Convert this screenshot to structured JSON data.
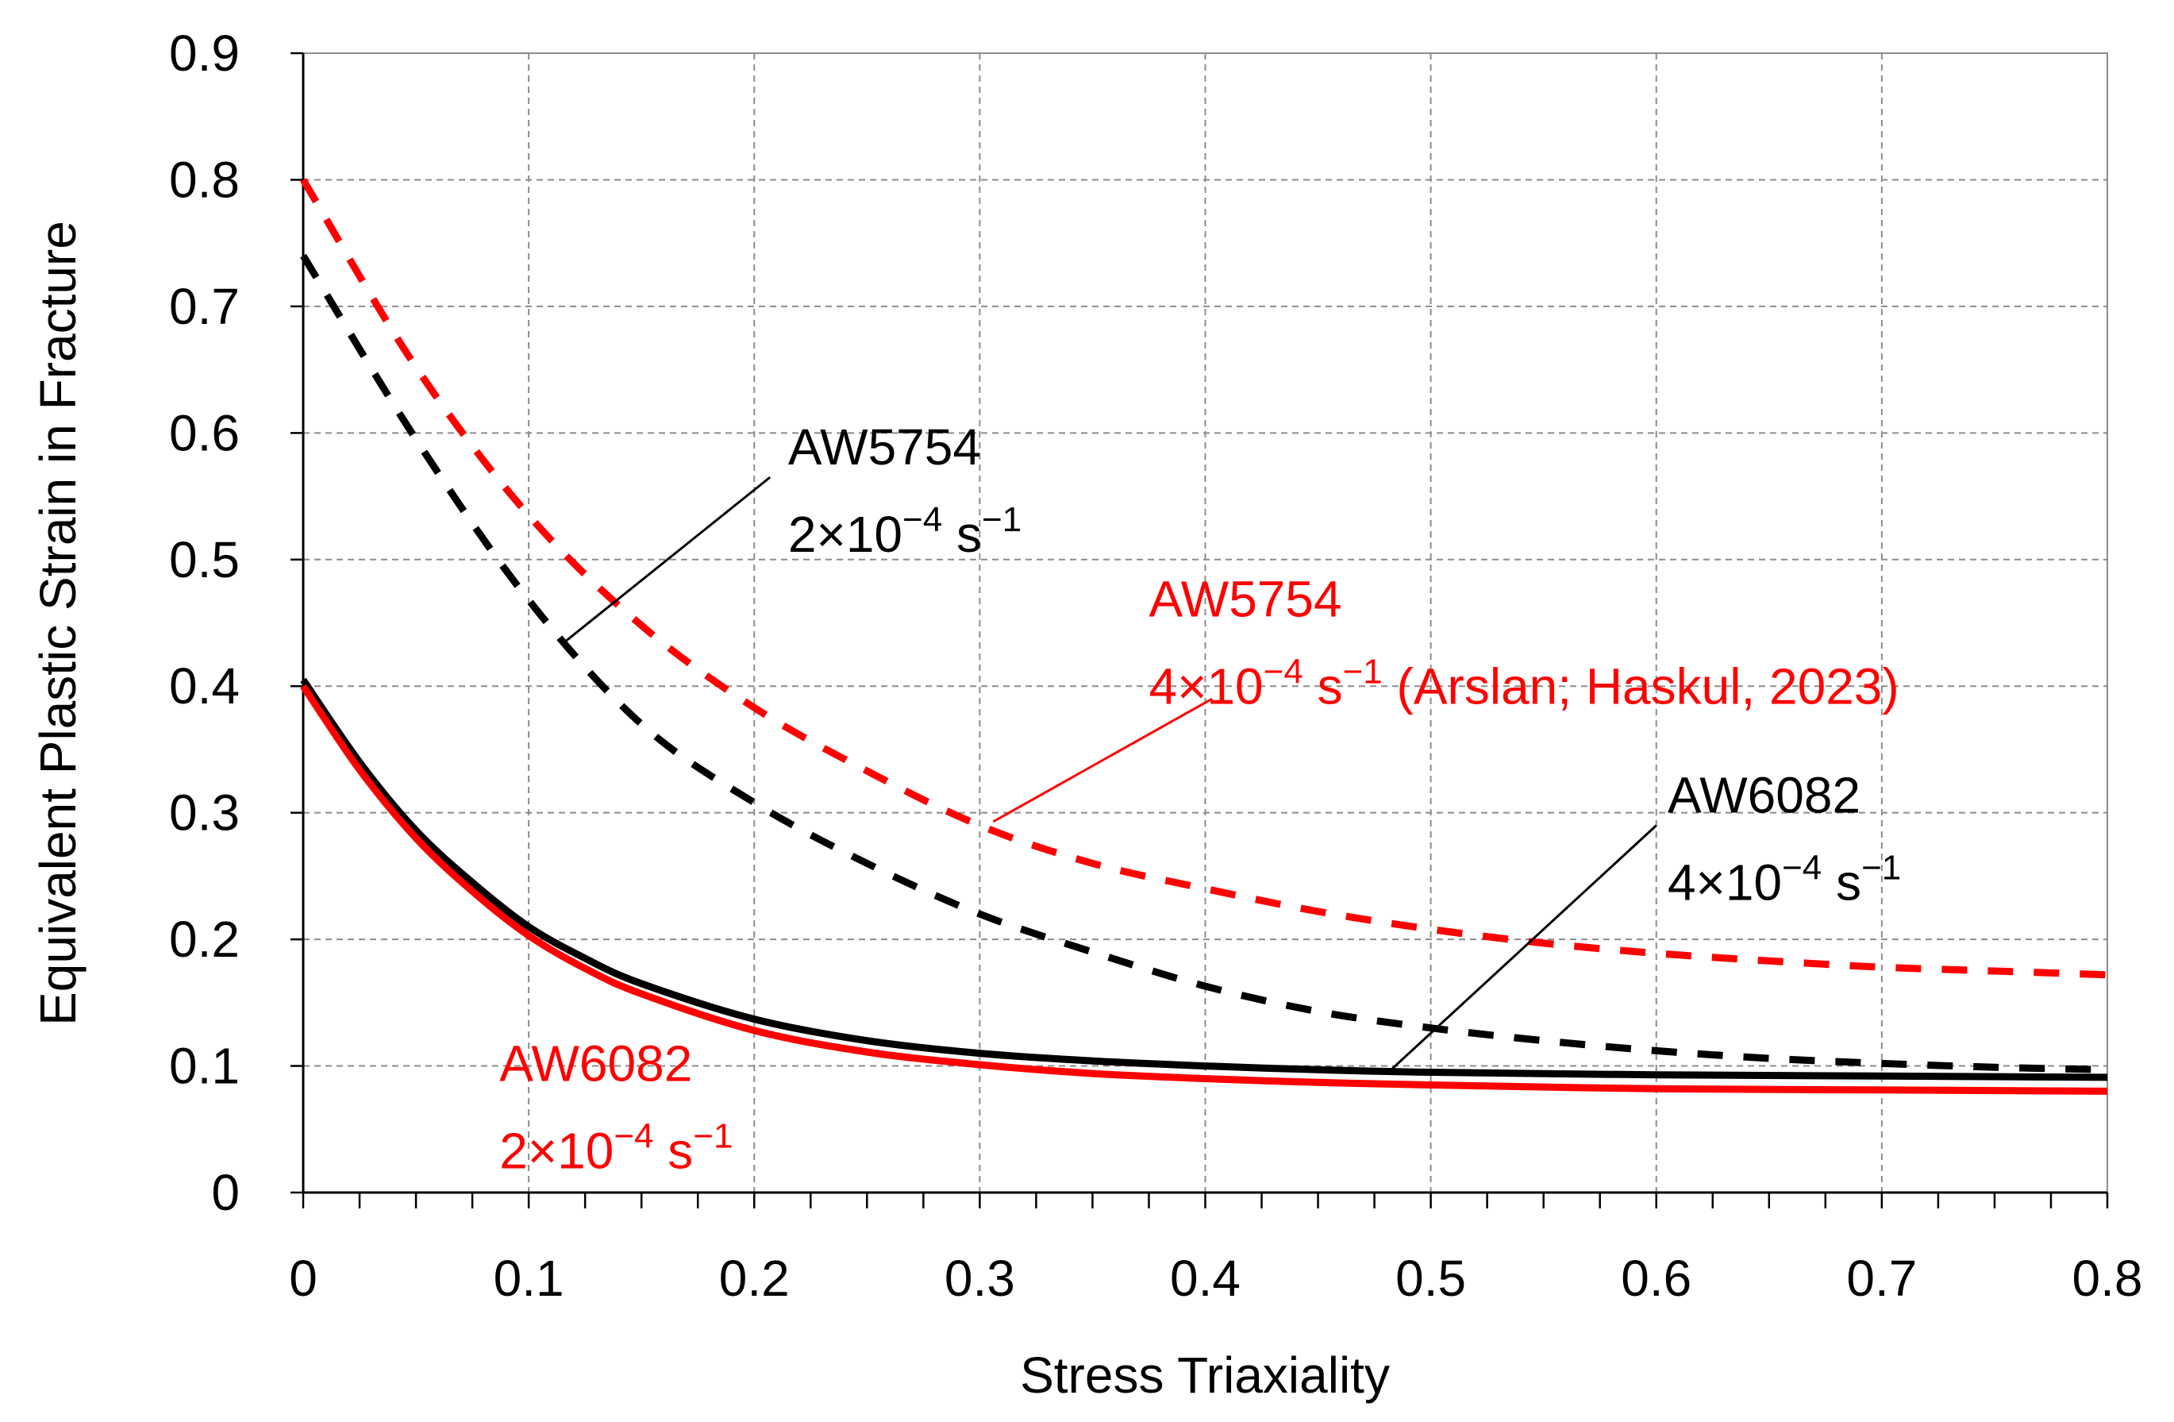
{
  "chart_data": {
    "type": "line",
    "title": "",
    "xlabel": "Stress Triaxiality",
    "ylabel": "Equivalent Plastic Strain in Fracture",
    "xlim": [
      0,
      0.8
    ],
    "ylim": [
      0,
      0.9
    ],
    "grid": true,
    "x_ticks": [
      0,
      0.1,
      0.2,
      0.3,
      0.4,
      0.5,
      0.6,
      0.7,
      0.8
    ],
    "x_tick_labels": [
      "0",
      "0.1",
      "0.2",
      "0.3",
      "0.4",
      "0.5",
      "0.6",
      "0.7",
      "0.8"
    ],
    "y_ticks": [
      0,
      0.1,
      0.2,
      0.3,
      0.4,
      0.5,
      0.6,
      0.7,
      0.8,
      0.9
    ],
    "y_tick_labels": [
      "0",
      "0.1",
      "0.2",
      "0.3",
      "0.4",
      "0.5",
      "0.6",
      "0.7",
      "0.8",
      "0.9"
    ],
    "x_minor_step": 0.025,
    "series": [
      {
        "name": "AW5754 2×10⁻⁴ s⁻¹",
        "color": "#000000",
        "dash": true,
        "x": [
          0,
          0.05,
          0.1,
          0.15,
          0.2,
          0.25,
          0.3,
          0.35,
          0.4,
          0.45,
          0.5,
          0.55,
          0.6,
          0.65,
          0.7,
          0.75,
          0.8
        ],
        "y": [
          0.74,
          0.595,
          0.468,
          0.37,
          0.308,
          0.26,
          0.22,
          0.19,
          0.163,
          0.143,
          0.13,
          0.12,
          0.112,
          0.106,
          0.102,
          0.099,
          0.097
        ]
      },
      {
        "name": "AW5754 4×10⁻⁴ s⁻¹ (Arslan; Haskul, 2023)",
        "color": "#ff0000",
        "dash": true,
        "x": [
          0,
          0.05,
          0.1,
          0.15,
          0.2,
          0.25,
          0.3,
          0.35,
          0.4,
          0.45,
          0.5,
          0.55,
          0.6,
          0.65,
          0.7,
          0.75,
          0.8
        ],
        "y": [
          0.8,
          0.652,
          0.535,
          0.448,
          0.383,
          0.333,
          0.29,
          0.26,
          0.24,
          0.222,
          0.208,
          0.197,
          0.189,
          0.183,
          0.178,
          0.175,
          0.172
        ]
      },
      {
        "name": "AW6082 4×10⁻⁴ s⁻¹",
        "color": "#000000",
        "dash": false,
        "x": [
          0,
          0.025,
          0.05,
          0.075,
          0.1,
          0.125,
          0.15,
          0.2,
          0.25,
          0.3,
          0.35,
          0.4,
          0.45,
          0.5,
          0.6,
          0.7,
          0.8
        ],
        "y": [
          0.405,
          0.34,
          0.286,
          0.245,
          0.21,
          0.185,
          0.165,
          0.137,
          0.12,
          0.11,
          0.104,
          0.1,
          0.097,
          0.095,
          0.093,
          0.092,
          0.091
        ]
      },
      {
        "name": "AW6082 2×10⁻⁴ s⁻¹",
        "color": "#ff0000",
        "dash": false,
        "x": [
          0,
          0.025,
          0.05,
          0.075,
          0.1,
          0.125,
          0.15,
          0.2,
          0.25,
          0.3,
          0.35,
          0.4,
          0.45,
          0.5,
          0.6,
          0.7,
          0.8
        ],
        "y": [
          0.4,
          0.334,
          0.28,
          0.238,
          0.203,
          0.177,
          0.157,
          0.128,
          0.111,
          0.101,
          0.094,
          0.09,
          0.087,
          0.085,
          0.082,
          0.081,
          0.08
        ]
      }
    ],
    "annotations": [
      {
        "id": "aw5754-black",
        "line1": "AW5754",
        "line2_base": "2×10",
        "line2_exp": "−4",
        "line2_unit": " s",
        "line2_unit_exp": "−1",
        "line2_suffix": "",
        "color": "#000000",
        "text_at": [
          0.215,
          0.575
        ],
        "arrow_from": [
          0.207,
          0.565
        ],
        "arrow_to": [
          0.116,
          0.435
        ]
      },
      {
        "id": "aw5754-red",
        "line1": "AW5754",
        "line2_base": "4×10",
        "line2_exp": "−4",
        "line2_unit": " s",
        "line2_unit_exp": "−1",
        "line2_suffix": " (Arslan; Haskul, 2023)",
        "color": "#ff0000",
        "text_at": [
          0.375,
          0.455
        ],
        "arrow_from": [
          0.403,
          0.39
        ],
        "arrow_to": [
          0.306,
          0.293
        ]
      },
      {
        "id": "aw6082-black",
        "line1": "AW6082",
        "line2_base": "4×10",
        "line2_exp": "−4",
        "line2_unit": " s",
        "line2_unit_exp": "−1",
        "line2_suffix": "",
        "color": "#000000",
        "text_at": [
          0.605,
          0.3
        ],
        "arrow_from": [
          0.6,
          0.29
        ],
        "arrow_to": [
          0.483,
          0.098
        ]
      },
      {
        "id": "aw6082-red",
        "line1": "AW6082",
        "line2_base": "2×10",
        "line2_exp": "−4",
        "line2_unit": " s",
        "line2_unit_exp": "−1",
        "line2_suffix": "",
        "color": "#ff0000",
        "text_at": [
          0.087,
          0.088
        ],
        "arrow_from": null,
        "arrow_to": null
      }
    ]
  }
}
